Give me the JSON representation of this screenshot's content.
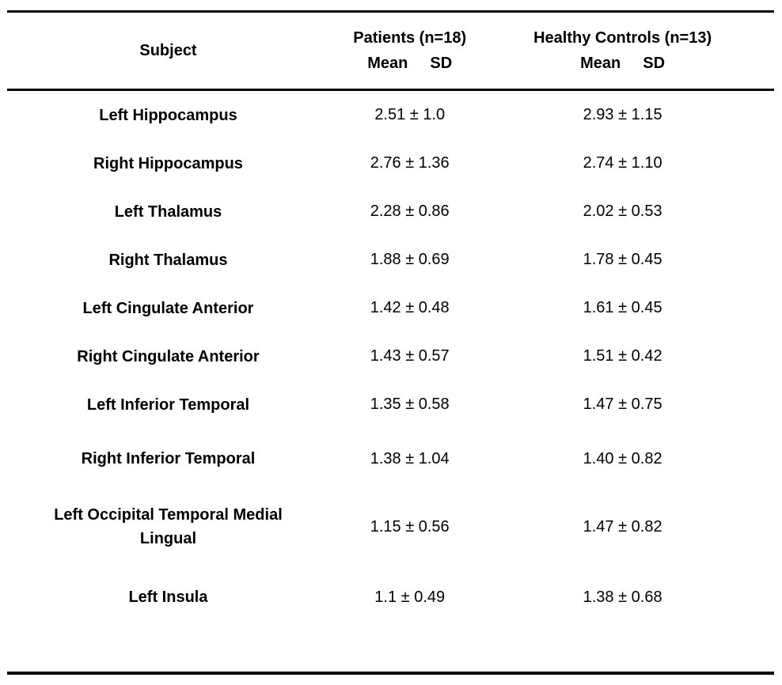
{
  "header": {
    "subject": "Subject",
    "patients_group": "Patients (n=18)",
    "controls_group": "Healthy Controls (n=13)",
    "patients_mean_label": "Mean",
    "patients_sd_label": "SD",
    "controls_mean_label": "Mean",
    "controls_sd_label": "SD"
  },
  "rows": [
    {
      "subject": "Left Hippocampus",
      "patients": "2.51 ± 1.0",
      "controls": "2.93 ± 1.15"
    },
    {
      "subject": "Right Hippocampus",
      "patients": "2.76 ± 1.36",
      "controls": "2.74 ± 1.10"
    },
    {
      "subject": "Left Thalamus",
      "patients": "2.28 ± 0.86",
      "controls": "2.02 ± 0.53"
    },
    {
      "subject": "Right Thalamus",
      "patients": "1.88 ± 0.69",
      "controls": "1.78 ± 0.45"
    },
    {
      "subject": "Left Cingulate Anterior",
      "patients": "1.42 ± 0.48",
      "controls": "1.61 ± 0.45"
    },
    {
      "subject": "Right Cingulate Anterior",
      "patients": "1.43 ± 0.57",
      "controls": "1.51 ± 0.42"
    },
    {
      "subject": "Left Inferior Temporal",
      "patients": "1.35 ± 0.58",
      "controls": "1.47 ± 0.75"
    },
    {
      "subject": "Right Inferior Temporal",
      "patients": "1.38 ± 1.04",
      "controls": "1.40 ± 0.82"
    },
    {
      "subject": "Left Occipital Temporal Medial Lingual",
      "patients": "1.15 ± 0.56",
      "controls": "1.47 ± 0.82"
    },
    {
      "subject": "Left Insula",
      "patients": "1.1 ± 0.49",
      "controls": "1.38 ± 0.68"
    }
  ],
  "colors": {
    "text": "#000000",
    "background": "#ffffff",
    "rule": "#000000"
  }
}
